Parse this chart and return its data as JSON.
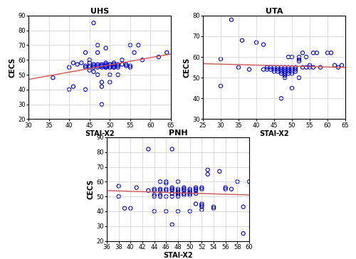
{
  "uhs": {
    "title": "UHS",
    "xlabel": "STAI-X2",
    "ylabel": "CECS",
    "xlim": [
      30,
      65
    ],
    "ylim": [
      20,
      90
    ],
    "xticks": [
      30,
      35,
      40,
      45,
      50,
      55,
      60,
      65
    ],
    "yticks": [
      20,
      30,
      40,
      50,
      60,
      70,
      80,
      90
    ],
    "x": [
      36,
      40,
      40,
      41,
      41,
      42,
      43,
      44,
      44,
      44,
      44,
      45,
      45,
      45,
      45,
      45,
      46,
      46,
      46,
      46,
      46,
      47,
      47,
      47,
      47,
      47,
      47,
      48,
      48,
      48,
      48,
      48,
      48,
      48,
      49,
      49,
      49,
      49,
      49,
      49,
      49,
      50,
      50,
      50,
      50,
      50,
      50,
      50,
      51,
      51,
      51,
      51,
      51,
      52,
      52,
      52,
      52,
      53,
      53,
      54,
      54,
      55,
      55,
      55,
      56,
      57,
      58,
      62,
      64
    ],
    "y": [
      48,
      40,
      55,
      58,
      42,
      57,
      58,
      56,
      55,
      40,
      65,
      56,
      55,
      58,
      53,
      60,
      55,
      56,
      57,
      52,
      85,
      55,
      57,
      56,
      50,
      65,
      70,
      55,
      56,
      57,
      56,
      42,
      45,
      30,
      56,
      55,
      58,
      57,
      55,
      56,
      68,
      55,
      57,
      56,
      57,
      55,
      50,
      45,
      57,
      56,
      58,
      55,
      55,
      57,
      56,
      55,
      50,
      57,
      60,
      56,
      57,
      56,
      55,
      70,
      65,
      70,
      60,
      62,
      65
    ]
  },
  "uta": {
    "title": "UTA",
    "xlabel": "STAI-X2",
    "ylabel": "CECS",
    "xlim": [
      25,
      65
    ],
    "ylim": [
      30,
      80
    ],
    "xticks": [
      25,
      30,
      35,
      40,
      45,
      50,
      55,
      60,
      65
    ],
    "yticks": [
      30,
      40,
      50,
      60,
      70,
      80
    ],
    "x": [
      30,
      30,
      33,
      35,
      36,
      38,
      40,
      42,
      42,
      43,
      43,
      44,
      44,
      45,
      45,
      45,
      46,
      46,
      46,
      47,
      47,
      47,
      47,
      47,
      48,
      48,
      48,
      48,
      48,
      48,
      49,
      49,
      49,
      49,
      49,
      50,
      50,
      50,
      50,
      50,
      50,
      51,
      51,
      51,
      52,
      52,
      52,
      52,
      53,
      53,
      54,
      54,
      55,
      55,
      56,
      56,
      57,
      58,
      60,
      61,
      62,
      63,
      64
    ],
    "y": [
      59,
      46,
      78,
      55,
      68,
      54,
      67,
      54,
      66,
      55,
      54,
      55,
      54,
      55,
      54,
      53,
      55,
      54,
      53,
      55,
      54,
      53,
      52,
      40,
      55,
      54,
      53,
      52,
      51,
      50,
      55,
      54,
      53,
      52,
      60,
      55,
      54,
      53,
      52,
      60,
      45,
      55,
      54,
      53,
      60,
      59,
      58,
      50,
      55,
      62,
      60,
      55,
      55,
      56,
      62,
      55,
      62,
      55,
      62,
      62,
      56,
      55,
      56
    ]
  },
  "pnh": {
    "title": "PNH",
    "xlabel": "STAI-X2",
    "ylabel": "CECS",
    "xlim": [
      36,
      60
    ],
    "ylim": [
      20,
      90
    ],
    "xticks": [
      36,
      38,
      40,
      42,
      44,
      46,
      48,
      50,
      52,
      54,
      56,
      58,
      60
    ],
    "yticks": [
      20,
      30,
      40,
      50,
      60,
      70,
      80,
      90
    ],
    "x": [
      38,
      38,
      39,
      40,
      41,
      43,
      43,
      44,
      44,
      44,
      44,
      44,
      45,
      45,
      45,
      45,
      45,
      46,
      46,
      46,
      46,
      46,
      46,
      47,
      47,
      47,
      47,
      47,
      47,
      47,
      48,
      48,
      48,
      48,
      48,
      48,
      48,
      48,
      49,
      49,
      49,
      49,
      49,
      50,
      50,
      50,
      50,
      50,
      50,
      51,
      51,
      51,
      51,
      51,
      52,
      52,
      52,
      52,
      52,
      52,
      53,
      53,
      54,
      54,
      55,
      56,
      56,
      57,
      58,
      59,
      59,
      60
    ],
    "y": [
      57,
      50,
      42,
      42,
      56,
      82,
      54,
      55,
      54,
      51,
      50,
      40,
      55,
      54,
      51,
      50,
      60,
      55,
      54,
      60,
      50,
      59,
      40,
      56,
      55,
      54,
      52,
      50,
      31,
      82,
      55,
      54,
      53,
      52,
      51,
      50,
      60,
      40,
      56,
      55,
      54,
      52,
      51,
      55,
      54,
      53,
      52,
      51,
      40,
      56,
      55,
      54,
      52,
      45,
      56,
      55,
      45,
      44,
      43,
      41,
      68,
      65,
      43,
      42,
      67,
      56,
      55,
      55,
      60,
      43,
      25,
      60
    ]
  },
  "scatter_color": "#0000CC",
  "line_color": "#CC5555",
  "marker_size": 14,
  "marker_linewidth": 0.8,
  "title_fontsize": 8,
  "label_fontsize": 7,
  "tick_fontsize": 6
}
